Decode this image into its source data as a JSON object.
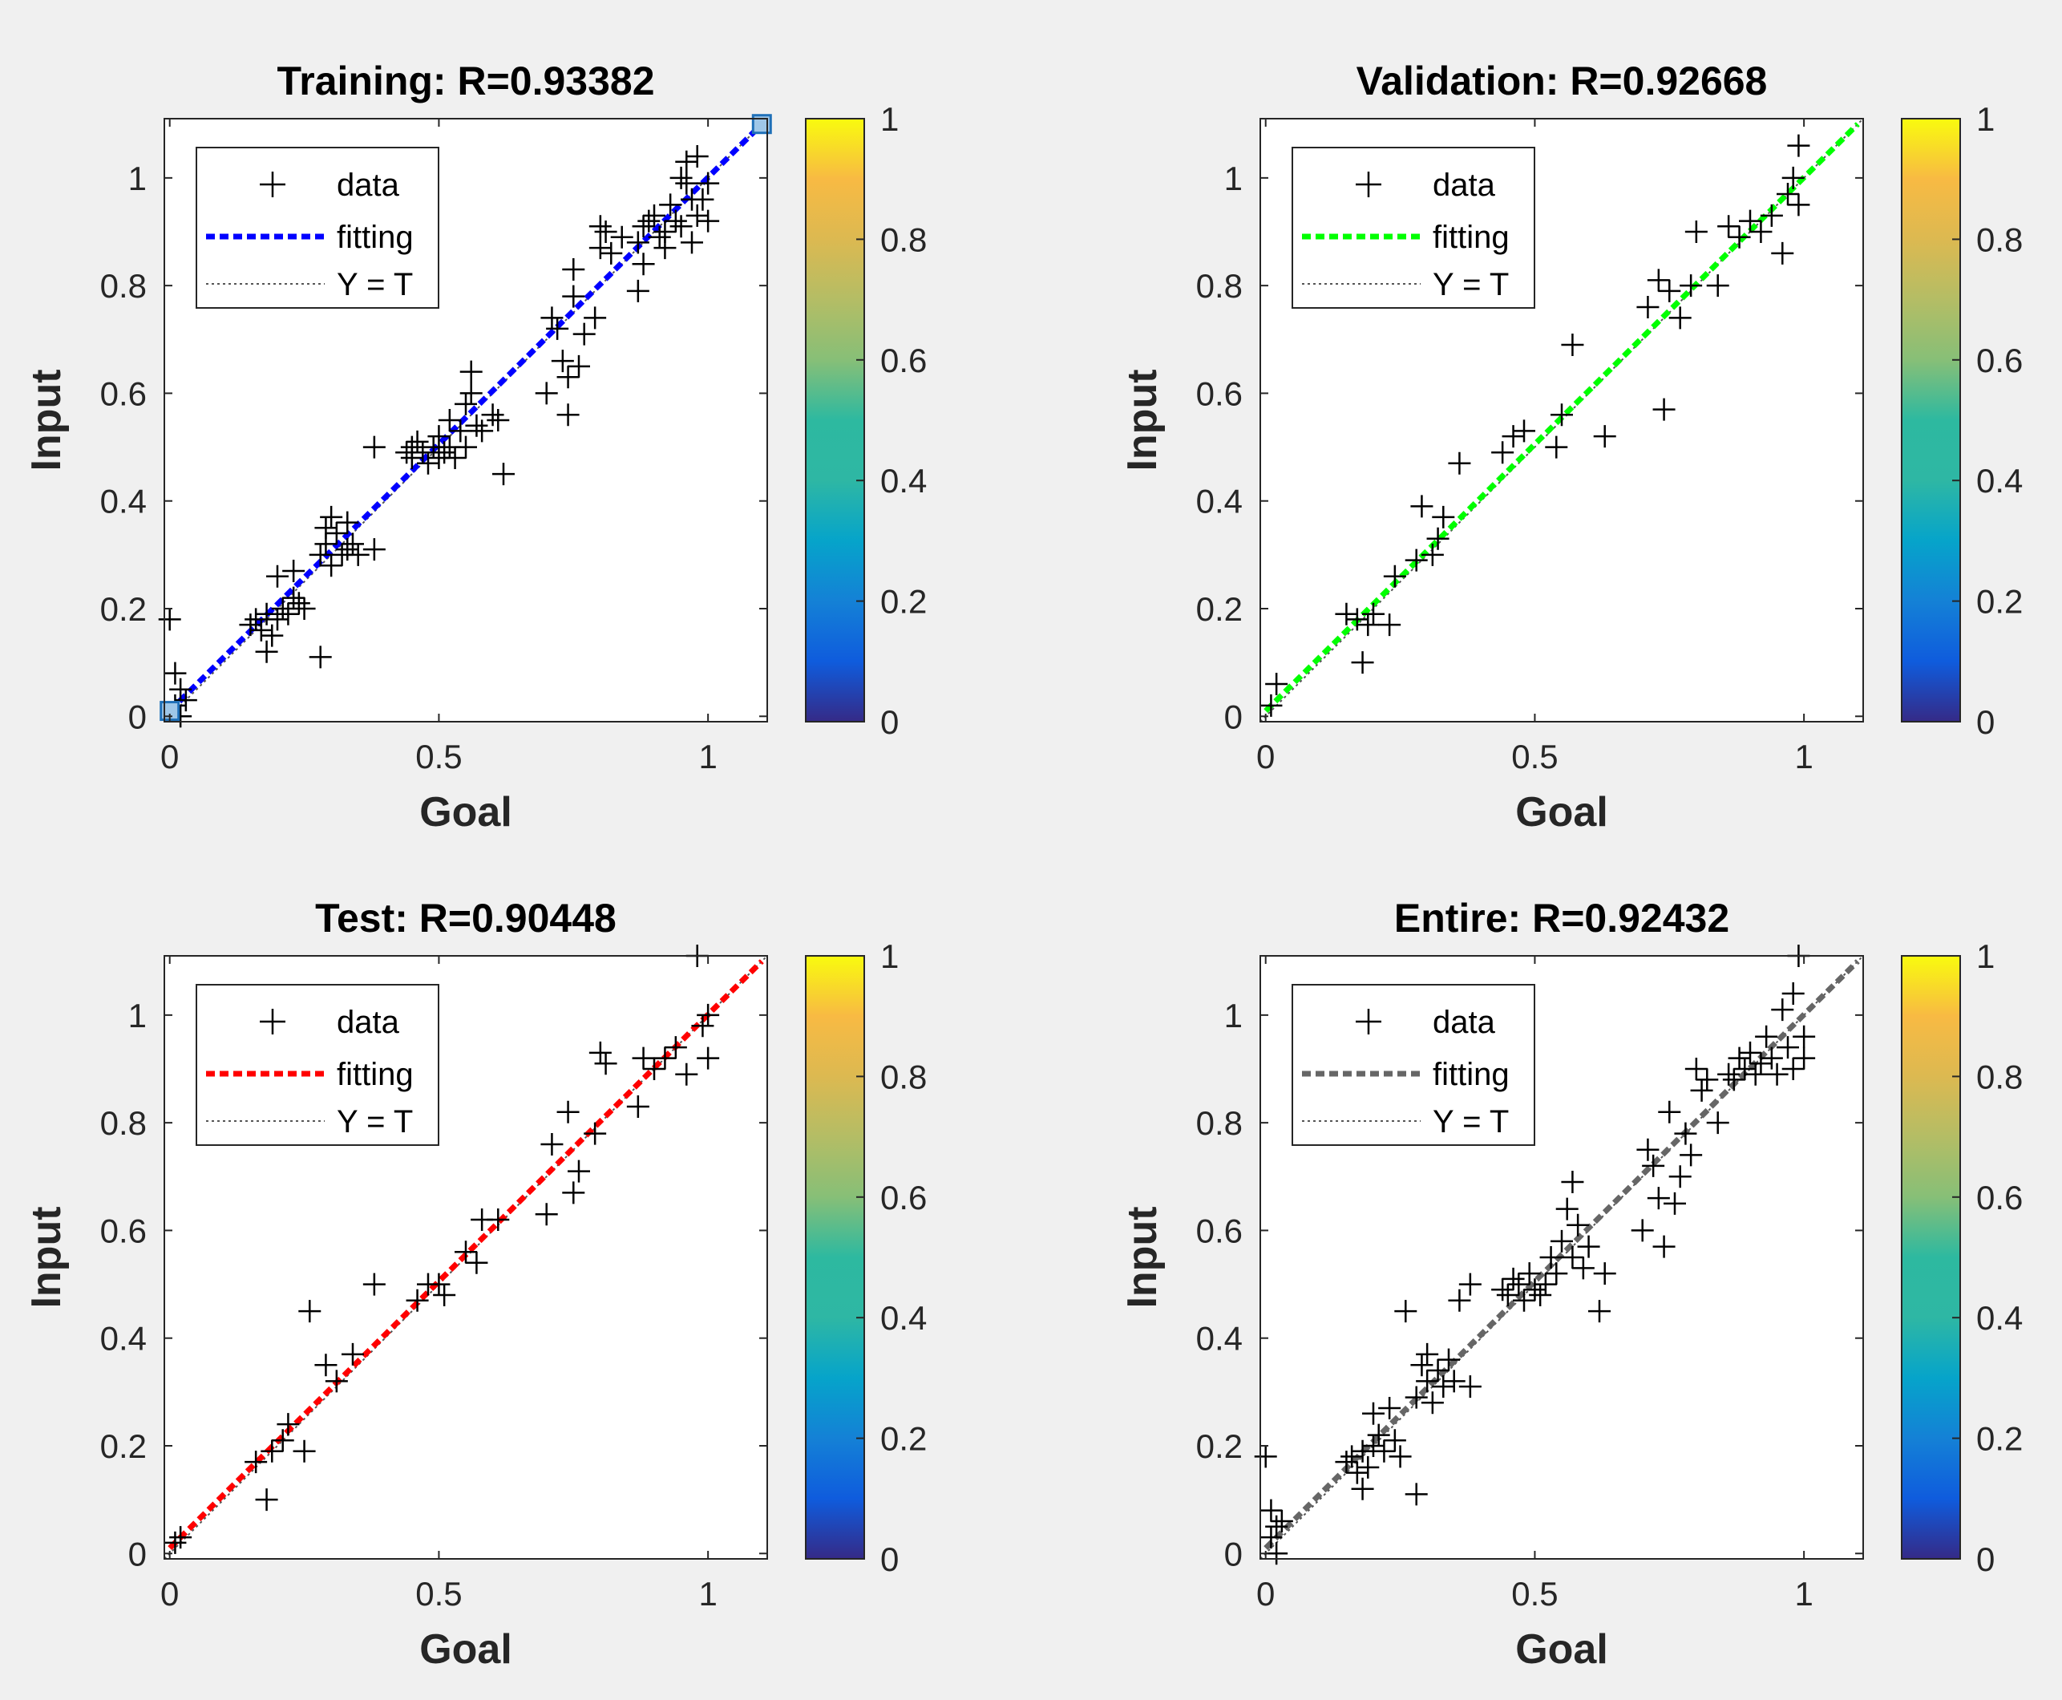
{
  "chart_data": [
    {
      "type": "scatter",
      "title": "Training: R=0.93382",
      "xlabel": "Goal",
      "ylabel": "Input",
      "xlim": [
        -0.01,
        1.11
      ],
      "ylim": [
        -0.01,
        1.11
      ],
      "xticks": [
        0,
        0.5,
        1
      ],
      "yticks": [
        0,
        0.2,
        0.4,
        0.6,
        0.8,
        1
      ],
      "legend": [
        "data",
        "fitting",
        "Y = T"
      ],
      "fit_color": "#0000ff",
      "fit_line": [
        [
          0,
          0.01
        ],
        [
          1.1,
          1.1
        ]
      ],
      "endpoint_markers": [
        [
          0,
          0.01
        ],
        [
          1.1,
          1.1
        ]
      ],
      "colorbar": {
        "min": 0,
        "max": 1,
        "ticks": [
          0,
          0.2,
          0.4,
          0.6,
          0.8,
          1
        ]
      },
      "points": [
        [
          0.0,
          0.18
        ],
        [
          0.01,
          0.08
        ],
        [
          0.02,
          0.05
        ],
        [
          0.02,
          0.0
        ],
        [
          0.01,
          0.02
        ],
        [
          0.03,
          0.03
        ],
        [
          0.15,
          0.17
        ],
        [
          0.16,
          0.18
        ],
        [
          0.17,
          0.16
        ],
        [
          0.18,
          0.19
        ],
        [
          0.18,
          0.12
        ],
        [
          0.19,
          0.15
        ],
        [
          0.2,
          0.18
        ],
        [
          0.2,
          0.26
        ],
        [
          0.21,
          0.2
        ],
        [
          0.22,
          0.19
        ],
        [
          0.23,
          0.22
        ],
        [
          0.23,
          0.27
        ],
        [
          0.24,
          0.21
        ],
        [
          0.25,
          0.2
        ],
        [
          0.28,
          0.11
        ],
        [
          0.28,
          0.3
        ],
        [
          0.29,
          0.32
        ],
        [
          0.29,
          0.35
        ],
        [
          0.3,
          0.37
        ],
        [
          0.3,
          0.28
        ],
        [
          0.31,
          0.34
        ],
        [
          0.32,
          0.3
        ],
        [
          0.33,
          0.36
        ],
        [
          0.33,
          0.31
        ],
        [
          0.34,
          0.32
        ],
        [
          0.35,
          0.3
        ],
        [
          0.38,
          0.31
        ],
        [
          0.38,
          0.5
        ],
        [
          0.44,
          0.49
        ],
        [
          0.45,
          0.5
        ],
        [
          0.45,
          0.48
        ],
        [
          0.46,
          0.51
        ],
        [
          0.47,
          0.49
        ],
        [
          0.48,
          0.47
        ],
        [
          0.49,
          0.5
        ],
        [
          0.5,
          0.52
        ],
        [
          0.5,
          0.48
        ],
        [
          0.51,
          0.49
        ],
        [
          0.52,
          0.5
        ],
        [
          0.52,
          0.55
        ],
        [
          0.53,
          0.48
        ],
        [
          0.54,
          0.53
        ],
        [
          0.55,
          0.58
        ],
        [
          0.55,
          0.5
        ],
        [
          0.56,
          0.6
        ],
        [
          0.56,
          0.64
        ],
        [
          0.57,
          0.54
        ],
        [
          0.58,
          0.53
        ],
        [
          0.6,
          0.56
        ],
        [
          0.61,
          0.55
        ],
        [
          0.62,
          0.45
        ],
        [
          0.7,
          0.6
        ],
        [
          0.71,
          0.74
        ],
        [
          0.72,
          0.72
        ],
        [
          0.73,
          0.66
        ],
        [
          0.74,
          0.63
        ],
        [
          0.74,
          0.56
        ],
        [
          0.75,
          0.78
        ],
        [
          0.75,
          0.83
        ],
        [
          0.76,
          0.65
        ],
        [
          0.77,
          0.71
        ],
        [
          0.79,
          0.74
        ],
        [
          0.8,
          0.87
        ],
        [
          0.8,
          0.91
        ],
        [
          0.81,
          0.9
        ],
        [
          0.82,
          0.86
        ],
        [
          0.84,
          0.89
        ],
        [
          0.87,
          0.79
        ],
        [
          0.87,
          0.88
        ],
        [
          0.88,
          0.91
        ],
        [
          0.88,
          0.84
        ],
        [
          0.89,
          0.92
        ],
        [
          0.9,
          0.93
        ],
        [
          0.91,
          0.89
        ],
        [
          0.92,
          0.9
        ],
        [
          0.93,
          0.95
        ],
        [
          0.94,
          0.92
        ],
        [
          0.95,
          0.91
        ],
        [
          0.95,
          1.0
        ],
        [
          0.96,
          1.03
        ],
        [
          0.97,
          0.88
        ],
        [
          0.97,
          0.96
        ],
        [
          0.98,
          1.04
        ],
        [
          0.98,
          0.93
        ],
        [
          0.99,
          0.96
        ],
        [
          1.0,
          0.92
        ],
        [
          1.0,
          0.99
        ],
        [
          0.92,
          0.87
        ],
        [
          0.96,
          0.99
        ]
      ]
    },
    {
      "type": "scatter",
      "title": "Validation: R=0.92668",
      "xlabel": "Goal",
      "ylabel": "Input",
      "xlim": [
        -0.01,
        1.11
      ],
      "ylim": [
        -0.01,
        1.11
      ],
      "xticks": [
        0,
        0.5,
        1
      ],
      "yticks": [
        0,
        0.2,
        0.4,
        0.6,
        0.8,
        1
      ],
      "legend": [
        "data",
        "fitting",
        "Y = T"
      ],
      "fit_color": "#00ff00",
      "fit_line": [
        [
          0,
          0.01
        ],
        [
          1.1,
          1.1
        ]
      ],
      "colorbar": {
        "min": 0,
        "max": 1,
        "ticks": [
          0,
          0.2,
          0.4,
          0.6,
          0.8,
          1
        ]
      },
      "points": [
        [
          0.01,
          0.02
        ],
        [
          0.02,
          0.06
        ],
        [
          0.15,
          0.19
        ],
        [
          0.17,
          0.18
        ],
        [
          0.18,
          0.1
        ],
        [
          0.19,
          0.17
        ],
        [
          0.2,
          0.19
        ],
        [
          0.23,
          0.17
        ],
        [
          0.24,
          0.26
        ],
        [
          0.28,
          0.29
        ],
        [
          0.29,
          0.39
        ],
        [
          0.31,
          0.3
        ],
        [
          0.32,
          0.33
        ],
        [
          0.33,
          0.37
        ],
        [
          0.36,
          0.47
        ],
        [
          0.44,
          0.49
        ],
        [
          0.46,
          0.52
        ],
        [
          0.48,
          0.53
        ],
        [
          0.54,
          0.5
        ],
        [
          0.55,
          0.56
        ],
        [
          0.57,
          0.69
        ],
        [
          0.63,
          0.52
        ],
        [
          0.71,
          0.76
        ],
        [
          0.73,
          0.81
        ],
        [
          0.74,
          0.57
        ],
        [
          0.75,
          0.79
        ],
        [
          0.77,
          0.74
        ],
        [
          0.79,
          0.8
        ],
        [
          0.8,
          0.9
        ],
        [
          0.84,
          0.8
        ],
        [
          0.86,
          0.91
        ],
        [
          0.88,
          0.89
        ],
        [
          0.9,
          0.92
        ],
        [
          0.92,
          0.9
        ],
        [
          0.94,
          0.93
        ],
        [
          0.96,
          0.86
        ],
        [
          0.97,
          0.97
        ],
        [
          0.98,
          1.0
        ],
        [
          0.99,
          0.95
        ],
        [
          0.99,
          1.06
        ]
      ]
    },
    {
      "type": "scatter",
      "title": "Test: R=0.90448",
      "xlabel": "Goal",
      "ylabel": "Input",
      "xlim": [
        -0.01,
        1.11
      ],
      "ylim": [
        -0.01,
        1.11
      ],
      "xticks": [
        0,
        0.5,
        1
      ],
      "yticks": [
        0,
        0.2,
        0.4,
        0.6,
        0.8,
        1
      ],
      "legend": [
        "data",
        "fitting",
        "Y = T"
      ],
      "fit_color": "#ff0000",
      "fit_line": [
        [
          0,
          0.01
        ],
        [
          1.1,
          1.1
        ]
      ],
      "colorbar": {
        "min": 0,
        "max": 1,
        "ticks": [
          0,
          0.2,
          0.4,
          0.6,
          0.8,
          1
        ]
      },
      "points": [
        [
          0.01,
          0.02
        ],
        [
          0.02,
          0.03
        ],
        [
          0.16,
          0.17
        ],
        [
          0.18,
          0.1
        ],
        [
          0.19,
          0.19
        ],
        [
          0.21,
          0.21
        ],
        [
          0.22,
          0.24
        ],
        [
          0.25,
          0.19
        ],
        [
          0.26,
          0.45
        ],
        [
          0.29,
          0.35
        ],
        [
          0.31,
          0.32
        ],
        [
          0.34,
          0.37
        ],
        [
          0.38,
          0.5
        ],
        [
          0.46,
          0.47
        ],
        [
          0.48,
          0.5
        ],
        [
          0.5,
          0.5
        ],
        [
          0.51,
          0.48
        ],
        [
          0.55,
          0.56
        ],
        [
          0.57,
          0.54
        ],
        [
          0.58,
          0.62
        ],
        [
          0.61,
          0.62
        ],
        [
          0.7,
          0.63
        ],
        [
          0.71,
          0.76
        ],
        [
          0.74,
          0.82
        ],
        [
          0.75,
          0.67
        ],
        [
          0.76,
          0.71
        ],
        [
          0.79,
          0.78
        ],
        [
          0.8,
          0.93
        ],
        [
          0.81,
          0.91
        ],
        [
          0.87,
          0.83
        ],
        [
          0.88,
          0.92
        ],
        [
          0.9,
          0.9
        ],
        [
          0.92,
          0.92
        ],
        [
          0.94,
          0.94
        ],
        [
          0.96,
          0.89
        ],
        [
          0.98,
          1.11
        ],
        [
          0.99,
          0.98
        ],
        [
          1.0,
          1.0
        ],
        [
          1.0,
          0.92
        ]
      ]
    },
    {
      "type": "scatter",
      "title": "Entire: R=0.92432",
      "xlabel": "Goal",
      "ylabel": "Input",
      "xlim": [
        -0.01,
        1.11
      ],
      "ylim": [
        -0.01,
        1.11
      ],
      "xticks": [
        0,
        0.5,
        1
      ],
      "yticks": [
        0,
        0.2,
        0.4,
        0.6,
        0.8,
        1
      ],
      "legend": [
        "data",
        "fitting",
        "Y = T"
      ],
      "fit_color": "#666666",
      "fit_line": [
        [
          0,
          0.01
        ],
        [
          1.1,
          1.1
        ]
      ],
      "colorbar": {
        "min": 0,
        "max": 1,
        "ticks": [
          0,
          0.2,
          0.4,
          0.6,
          0.8,
          1
        ]
      },
      "points": [
        [
          0.0,
          0.18
        ],
        [
          0.01,
          0.08
        ],
        [
          0.01,
          0.03
        ],
        [
          0.02,
          0.0
        ],
        [
          0.02,
          0.05
        ],
        [
          0.03,
          0.06
        ],
        [
          0.15,
          0.17
        ],
        [
          0.16,
          0.18
        ],
        [
          0.17,
          0.15
        ],
        [
          0.18,
          0.12
        ],
        [
          0.18,
          0.19
        ],
        [
          0.19,
          0.16
        ],
        [
          0.2,
          0.2
        ],
        [
          0.2,
          0.26
        ],
        [
          0.21,
          0.22
        ],
        [
          0.22,
          0.19
        ],
        [
          0.23,
          0.27
        ],
        [
          0.24,
          0.21
        ],
        [
          0.25,
          0.18
        ],
        [
          0.26,
          0.45
        ],
        [
          0.28,
          0.11
        ],
        [
          0.28,
          0.29
        ],
        [
          0.29,
          0.35
        ],
        [
          0.3,
          0.32
        ],
        [
          0.3,
          0.37
        ],
        [
          0.31,
          0.28
        ],
        [
          0.32,
          0.34
        ],
        [
          0.33,
          0.31
        ],
        [
          0.34,
          0.36
        ],
        [
          0.35,
          0.32
        ],
        [
          0.36,
          0.47
        ],
        [
          0.38,
          0.5
        ],
        [
          0.38,
          0.31
        ],
        [
          0.44,
          0.49
        ],
        [
          0.45,
          0.48
        ],
        [
          0.46,
          0.51
        ],
        [
          0.47,
          0.5
        ],
        [
          0.48,
          0.47
        ],
        [
          0.49,
          0.52
        ],
        [
          0.5,
          0.49
        ],
        [
          0.51,
          0.48
        ],
        [
          0.52,
          0.5
        ],
        [
          0.53,
          0.55
        ],
        [
          0.54,
          0.52
        ],
        [
          0.55,
          0.58
        ],
        [
          0.56,
          0.64
        ],
        [
          0.57,
          0.69
        ],
        [
          0.57,
          0.55
        ],
        [
          0.58,
          0.61
        ],
        [
          0.59,
          0.53
        ],
        [
          0.6,
          0.57
        ],
        [
          0.62,
          0.45
        ],
        [
          0.63,
          0.52
        ],
        [
          0.7,
          0.6
        ],
        [
          0.71,
          0.75
        ],
        [
          0.72,
          0.72
        ],
        [
          0.73,
          0.66
        ],
        [
          0.74,
          0.57
        ],
        [
          0.75,
          0.82
        ],
        [
          0.76,
          0.65
        ],
        [
          0.77,
          0.7
        ],
        [
          0.78,
          0.78
        ],
        [
          0.79,
          0.74
        ],
        [
          0.8,
          0.9
        ],
        [
          0.81,
          0.86
        ],
        [
          0.82,
          0.88
        ],
        [
          0.84,
          0.8
        ],
        [
          0.86,
          0.89
        ],
        [
          0.87,
          0.88
        ],
        [
          0.88,
          0.92
        ],
        [
          0.89,
          0.9
        ],
        [
          0.9,
          0.93
        ],
        [
          0.91,
          0.89
        ],
        [
          0.92,
          0.91
        ],
        [
          0.93,
          0.96
        ],
        [
          0.94,
          0.92
        ],
        [
          0.95,
          0.89
        ],
        [
          0.96,
          1.01
        ],
        [
          0.97,
          0.94
        ],
        [
          0.98,
          1.04
        ],
        [
          0.98,
          0.9
        ],
        [
          0.99,
          1.11
        ],
        [
          1.0,
          0.96
        ],
        [
          1.0,
          0.92
        ]
      ]
    }
  ]
}
